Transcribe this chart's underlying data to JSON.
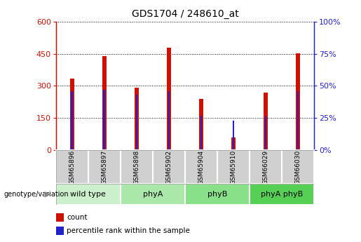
{
  "title": "GDS1704 / 248610_at",
  "samples": [
    "GSM65896",
    "GSM65897",
    "GSM65898",
    "GSM65902",
    "GSM65904",
    "GSM65910",
    "GSM66029",
    "GSM66030"
  ],
  "counts": [
    335,
    440,
    293,
    480,
    240,
    60,
    270,
    453
  ],
  "percentiles": [
    46,
    47,
    43,
    46,
    27,
    23,
    26,
    46
  ],
  "left_ylim": [
    0,
    600
  ],
  "left_yticks": [
    0,
    150,
    300,
    450,
    600
  ],
  "right_ylim": [
    0,
    100
  ],
  "right_yticks": [
    0,
    25,
    50,
    75,
    100
  ],
  "bar_color": "#cc1100",
  "percentile_color": "#2222cc",
  "group_data": [
    {
      "label": "wild type",
      "start": 0,
      "end": 1,
      "color": "#ccf0cc"
    },
    {
      "label": "phyA",
      "start": 2,
      "end": 3,
      "color": "#aae8aa"
    },
    {
      "label": "phyB",
      "start": 4,
      "end": 5,
      "color": "#88e088"
    },
    {
      "label": "phyA phyB",
      "start": 6,
      "end": 7,
      "color": "#55d055"
    }
  ],
  "sample_box_color": "#d0d0d0",
  "legend_count_label": "count",
  "legend_pct_label": "percentile rank within the sample",
  "genotype_label": "genotype/variation"
}
